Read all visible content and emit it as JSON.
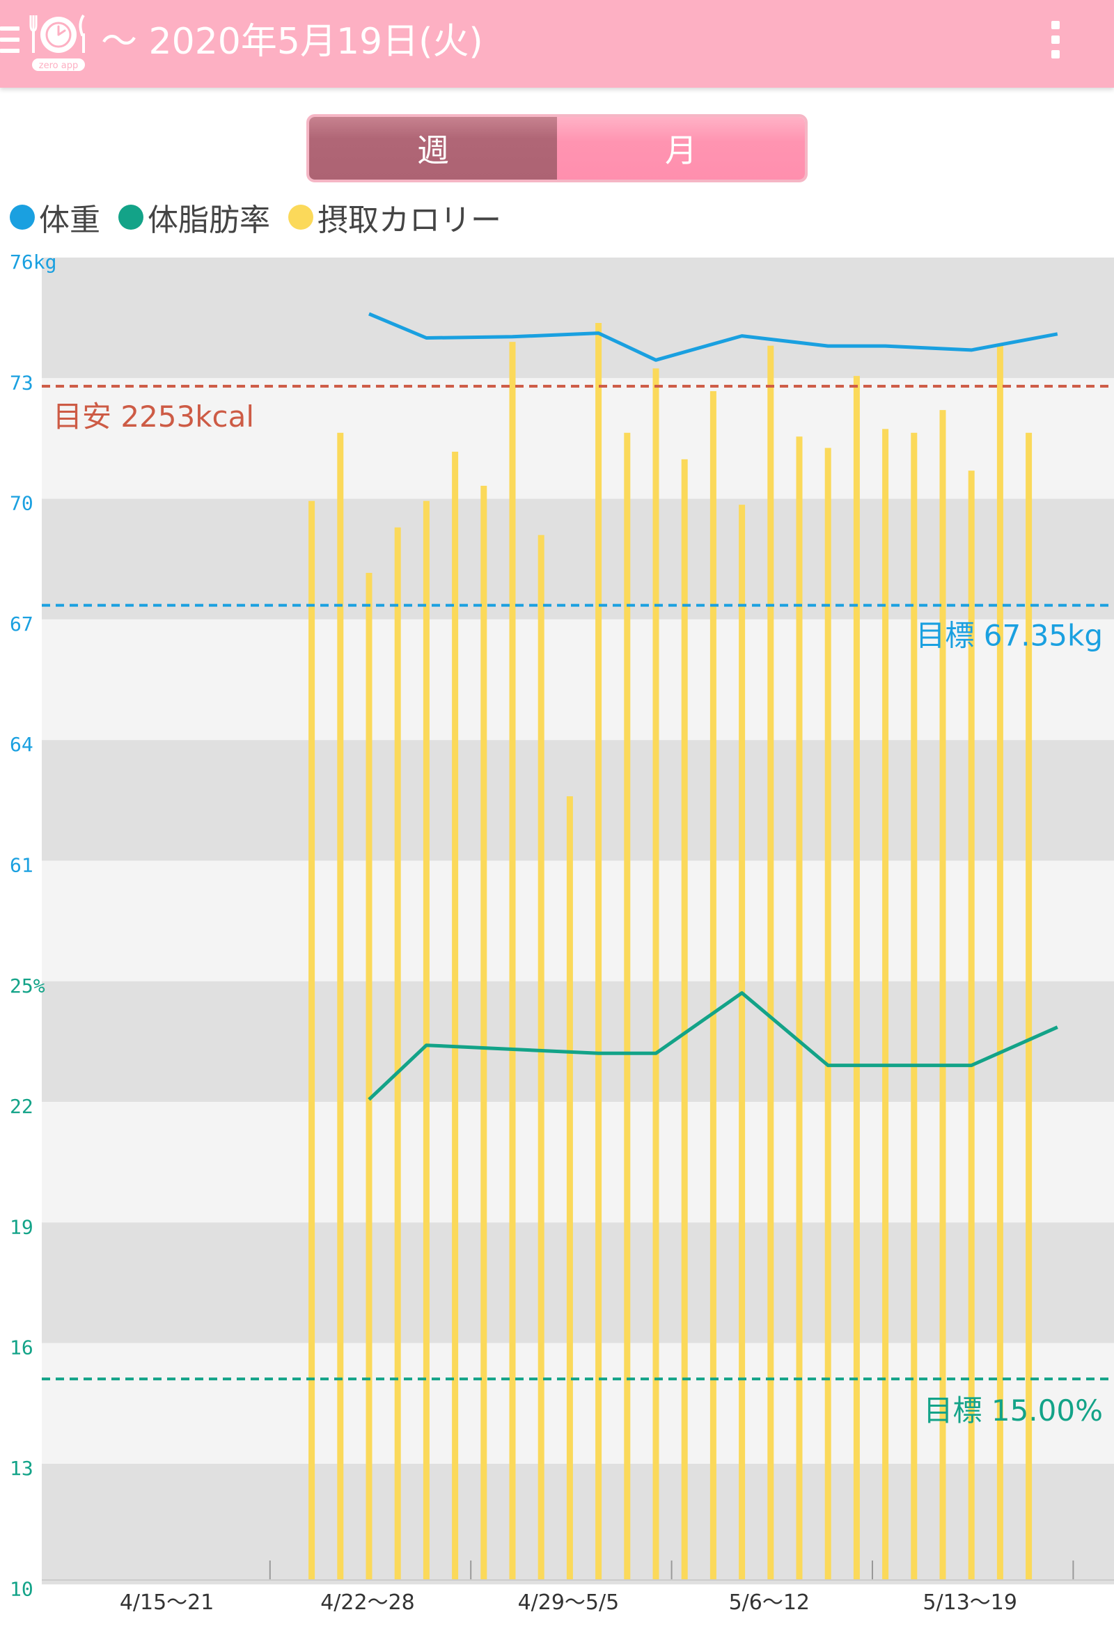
{
  "app": {
    "title": "〜 2020年5月19日(火)",
    "logo_text": "zero app",
    "icons": {
      "menu": "menu-icon",
      "logo": "plate-clock-icon",
      "overflow": "more-vert-icon"
    },
    "colors": {
      "appbar": "#fdb0c3"
    }
  },
  "segmented": {
    "week_label": "週",
    "month_label": "月",
    "selected": "週"
  },
  "legend": [
    {
      "label": "体重",
      "color": "#1aa0e0"
    },
    {
      "label": "体脂肪率",
      "color": "#13a388"
    },
    {
      "label": "摂取カロリー",
      "color": "#fbd95a"
    }
  ],
  "chart_data": {
    "type": "line",
    "title": "",
    "weight_axis": {
      "unit": "kg",
      "ticks": [
        "76kg",
        "73",
        "70",
        "67",
        "64",
        "61"
      ],
      "ylim": [
        61,
        76
      ]
    },
    "fat_axis": {
      "unit": "%",
      "ticks": [
        "25%",
        "22",
        "19",
        "16",
        "13",
        "10"
      ],
      "ylim": [
        10,
        25
      ]
    },
    "x_labels": [
      "4/15〜21",
      "4/22〜28",
      "4/29〜5/5",
      "5/6〜12",
      "5/13〜19"
    ],
    "x_start": "2020-04-15",
    "x_end": "2020-05-20",
    "weight_series": {
      "name": "体重",
      "color": "#1aa0e0",
      "points": [
        {
          "date": "2020-04-25",
          "kg": 74.6
        },
        {
          "date": "2020-04-27",
          "kg": 74.0
        },
        {
          "date": "2020-04-30",
          "kg": 74.03
        },
        {
          "date": "2020-05-03",
          "kg": 74.12
        },
        {
          "date": "2020-05-05",
          "kg": 73.45
        },
        {
          "date": "2020-05-08",
          "kg": 74.05
        },
        {
          "date": "2020-05-11",
          "kg": 73.8
        },
        {
          "date": "2020-05-13",
          "kg": 73.8
        },
        {
          "date": "2020-05-16",
          "kg": 73.7
        },
        {
          "date": "2020-05-19",
          "kg": 74.1
        }
      ]
    },
    "fat_series": {
      "name": "体脂肪率",
      "color": "#13a388",
      "points": [
        {
          "date": "2020-04-25",
          "pct": 21.95
        },
        {
          "date": "2020-04-27",
          "pct": 23.3
        },
        {
          "date": "2020-05-03",
          "pct": 23.1
        },
        {
          "date": "2020-05-05",
          "pct": 23.1
        },
        {
          "date": "2020-05-08",
          "pct": 24.6
        },
        {
          "date": "2020-05-11",
          "pct": 22.8
        },
        {
          "date": "2020-05-16",
          "pct": 22.8
        },
        {
          "date": "2020-05-19",
          "pct": 23.75
        }
      ]
    },
    "calorie_series": {
      "name": "摂取カロリー",
      "color": "#fbd95a",
      "values": [
        {
          "date": "2020-04-23",
          "kcal": 1950
        },
        {
          "date": "2020-04-24",
          "kcal": 2130
        },
        {
          "date": "2020-04-25",
          "kcal": 1760
        },
        {
          "date": "2020-04-26",
          "kcal": 1880
        },
        {
          "date": "2020-04-27",
          "kcal": 1950
        },
        {
          "date": "2020-04-28",
          "kcal": 2080
        },
        {
          "date": "2020-04-29",
          "kcal": 1990
        },
        {
          "date": "2020-04-30",
          "kcal": 2370
        },
        {
          "date": "2020-05-01",
          "kcal": 1860
        },
        {
          "date": "2020-05-02",
          "kcal": 1170
        },
        {
          "date": "2020-05-03",
          "kcal": 2420
        },
        {
          "date": "2020-05-04",
          "kcal": 2130
        },
        {
          "date": "2020-05-05",
          "kcal": 2300
        },
        {
          "date": "2020-05-06",
          "kcal": 2060
        },
        {
          "date": "2020-05-07",
          "kcal": 2240
        },
        {
          "date": "2020-05-08",
          "kcal": 1940
        },
        {
          "date": "2020-05-09",
          "kcal": 2360
        },
        {
          "date": "2020-05-10",
          "kcal": 2120
        },
        {
          "date": "2020-05-11",
          "kcal": 2090
        },
        {
          "date": "2020-05-12",
          "kcal": 2280
        },
        {
          "date": "2020-05-13",
          "kcal": 2140
        },
        {
          "date": "2020-05-14",
          "kcal": 2130
        },
        {
          "date": "2020-05-15",
          "kcal": 2190
        },
        {
          "date": "2020-05-16",
          "kcal": 2030
        },
        {
          "date": "2020-05-17",
          "kcal": 2360
        },
        {
          "date": "2020-05-18",
          "kcal": 2130
        }
      ]
    },
    "goals": {
      "calorie": {
        "label": "目安 2253kcal",
        "value_kcal": 2253,
        "color": "#cd5b45"
      },
      "weight": {
        "label": "目標 67.35kg",
        "value_kg": 67.35,
        "color": "#1aa0e0"
      },
      "fat": {
        "label": "目標 15.00%",
        "value_pct": 15.0,
        "color": "#13a388"
      }
    },
    "grid": true,
    "band_colors": [
      "#e0e0e0",
      "#f4f4f4"
    ]
  }
}
